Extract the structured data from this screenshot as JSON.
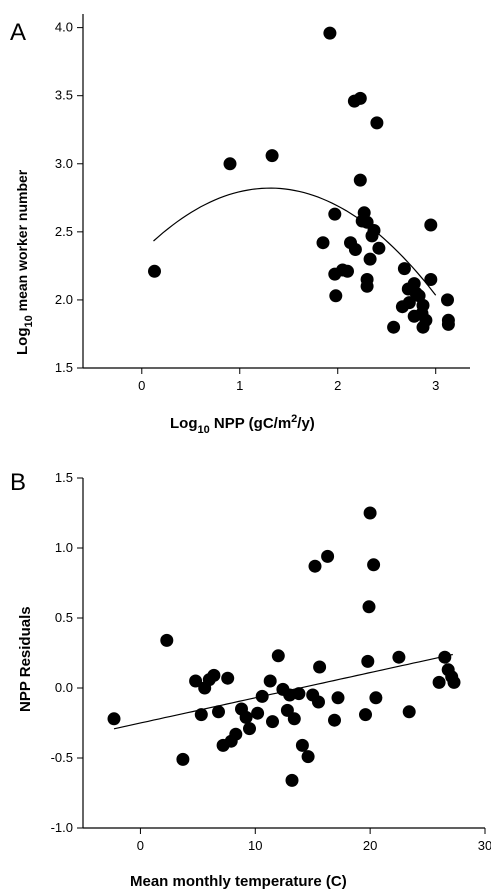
{
  "chart_data": [
    {
      "panel": "A",
      "type": "scatter",
      "ylabel_main": "Log",
      "ylabel_sub": "10",
      "ylabel_rest": " mean worker number",
      "xlabel_main": "Log",
      "xlabel_sub": "10",
      "xlabel_mid": " NPP (gC/m",
      "xlabel_sup": "2",
      "xlabel_rest": "/y)",
      "xlim": [
        -0.6,
        3.35
      ],
      "ylim": [
        1.5,
        4.1
      ],
      "xticks": [
        0,
        1,
        2,
        3
      ],
      "xtick_labels": [
        "0",
        "1",
        "2",
        "3"
      ],
      "yticks": [
        1.5,
        2.0,
        2.5,
        3.0,
        3.5,
        4.0
      ],
      "ytick_labels": [
        "1.5",
        "2.0",
        "2.5",
        "3.0",
        "3.5",
        "4.0"
      ],
      "fit": {
        "kind": "quadratic",
        "x_range": [
          0.12,
          3.0
        ],
        "coefficients": [
          2.35,
          0.72,
          -0.275
        ]
      },
      "points": [
        [
          0.13,
          2.21
        ],
        [
          0.9,
          3.0
        ],
        [
          1.33,
          3.06
        ],
        [
          1.92,
          3.96
        ],
        [
          1.85,
          2.42
        ],
        [
          1.97,
          2.63
        ],
        [
          1.97,
          2.19
        ],
        [
          1.98,
          2.03
        ],
        [
          2.05,
          2.22
        ],
        [
          2.1,
          2.21
        ],
        [
          2.13,
          2.42
        ],
        [
          2.17,
          3.46
        ],
        [
          2.23,
          3.48
        ],
        [
          2.23,
          2.88
        ],
        [
          2.18,
          2.37
        ],
        [
          2.25,
          2.58
        ],
        [
          2.27,
          2.64
        ],
        [
          2.3,
          2.57
        ],
        [
          2.3,
          2.15
        ],
        [
          2.33,
          2.3
        ],
        [
          2.35,
          2.47
        ],
        [
          2.37,
          2.51
        ],
        [
          2.4,
          3.3
        ],
        [
          2.42,
          2.38
        ],
        [
          2.3,
          2.1
        ],
        [
          2.57,
          1.8
        ],
        [
          2.68,
          2.23
        ],
        [
          2.66,
          1.95
        ],
        [
          2.72,
          2.08
        ],
        [
          2.73,
          1.98
        ],
        [
          2.78,
          2.12
        ],
        [
          2.78,
          1.88
        ],
        [
          2.83,
          2.03
        ],
        [
          2.87,
          1.96
        ],
        [
          2.87,
          1.8
        ],
        [
          2.9,
          1.85
        ],
        [
          2.95,
          2.55
        ],
        [
          2.95,
          2.15
        ],
        [
          3.12,
          2.0
        ],
        [
          3.13,
          1.85
        ],
        [
          3.13,
          1.82
        ],
        [
          2.86,
          1.9
        ],
        [
          2.8,
          2.05
        ]
      ]
    },
    {
      "panel": "B",
      "type": "scatter",
      "ylabel": "NPP Residuals",
      "xlabel": "Mean monthly temperature (C)",
      "xlim": [
        -5,
        30
      ],
      "ylim": [
        -1.0,
        1.5
      ],
      "xticks": [
        0,
        10,
        20,
        30
      ],
      "xtick_labels": [
        "0",
        "10",
        "20",
        "30"
      ],
      "yticks": [
        -1.0,
        -0.5,
        0.0,
        0.5,
        1.0,
        1.5
      ],
      "ytick_labels": [
        "-1.0",
        "-0.5",
        "0.0",
        "0.5",
        "1.0",
        "1.5"
      ],
      "fit": {
        "kind": "linear",
        "x_range": [
          -2.3,
          27.2
        ],
        "coefficients": [
          -0.25,
          0.018
        ]
      },
      "points": [
        [
          -2.3,
          -0.22
        ],
        [
          2.3,
          0.34
        ],
        [
          3.7,
          -0.51
        ],
        [
          4.8,
          0.05
        ],
        [
          5.3,
          -0.19
        ],
        [
          5.6,
          0.0
        ],
        [
          6.0,
          0.06
        ],
        [
          6.4,
          0.09
        ],
        [
          6.8,
          -0.17
        ],
        [
          7.2,
          -0.41
        ],
        [
          7.6,
          0.07
        ],
        [
          7.9,
          -0.38
        ],
        [
          8.3,
          -0.33
        ],
        [
          8.8,
          -0.15
        ],
        [
          9.2,
          -0.21
        ],
        [
          9.5,
          -0.29
        ],
        [
          10.2,
          -0.18
        ],
        [
          10.6,
          -0.06
        ],
        [
          11.3,
          0.05
        ],
        [
          11.5,
          -0.24
        ],
        [
          12.0,
          0.23
        ],
        [
          12.4,
          -0.01
        ],
        [
          12.8,
          -0.16
        ],
        [
          13.0,
          -0.05
        ],
        [
          13.2,
          -0.66
        ],
        [
          13.4,
          -0.22
        ],
        [
          13.8,
          -0.04
        ],
        [
          14.1,
          -0.41
        ],
        [
          14.6,
          -0.49
        ],
        [
          15.0,
          -0.05
        ],
        [
          15.2,
          0.87
        ],
        [
          15.5,
          -0.1
        ],
        [
          15.6,
          0.15
        ],
        [
          16.3,
          0.94
        ],
        [
          16.9,
          -0.23
        ],
        [
          17.2,
          -0.07
        ],
        [
          19.6,
          -0.19
        ],
        [
          19.8,
          0.19
        ],
        [
          19.9,
          0.58
        ],
        [
          20.0,
          1.25
        ],
        [
          20.3,
          0.88
        ],
        [
          20.5,
          -0.07
        ],
        [
          22.5,
          0.22
        ],
        [
          23.4,
          -0.17
        ],
        [
          26.0,
          0.04
        ],
        [
          26.5,
          0.22
        ],
        [
          26.8,
          0.13
        ],
        [
          27.1,
          0.08
        ],
        [
          27.3,
          0.04
        ]
      ]
    }
  ]
}
